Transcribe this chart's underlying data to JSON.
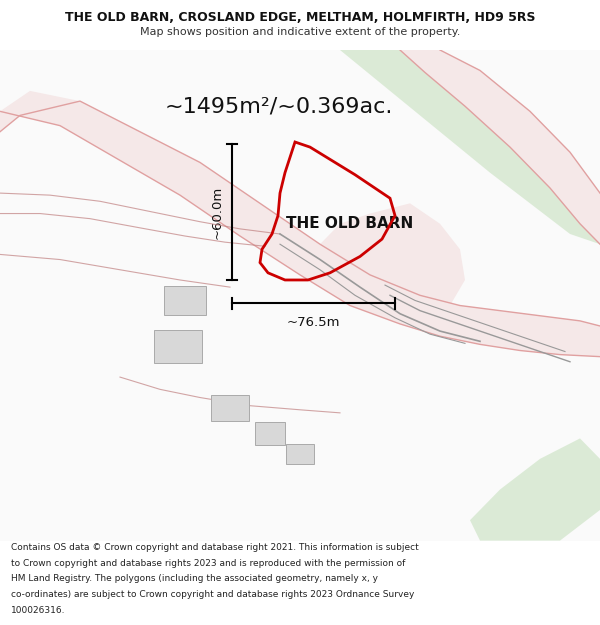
{
  "title_line1": "THE OLD BARN, CROSLAND EDGE, MELTHAM, HOLMFIRTH, HD9 5RS",
  "title_line2": "Map shows position and indicative extent of the property.",
  "area_label": "~1495m²/~0.369ac.",
  "property_label": "THE OLD BARN",
  "dim_horizontal": "~76.5m",
  "dim_vertical": "~60.0m",
  "footer_lines": [
    "Contains OS data © Crown copyright and database right 2021. This information is subject",
    "to Crown copyright and database rights 2023 and is reproduced with the permission of",
    "HM Land Registry. The polygons (including the associated geometry, namely x, y",
    "co-ordinates) are subject to Crown copyright and database rights 2023 Ordnance Survey",
    "100026316."
  ],
  "bg_color": "#ffffff",
  "green_fill": "#d6e8d0",
  "building_color": "#d8d8d8",
  "property_outline_color": "#cc0000",
  "road_fill_light": "#f5e8e8",
  "road_line_pink": "#e0a0a0",
  "road_line_dark": "#c08080",
  "gray_line": "#999999",
  "gray_line_dark": "#666666"
}
